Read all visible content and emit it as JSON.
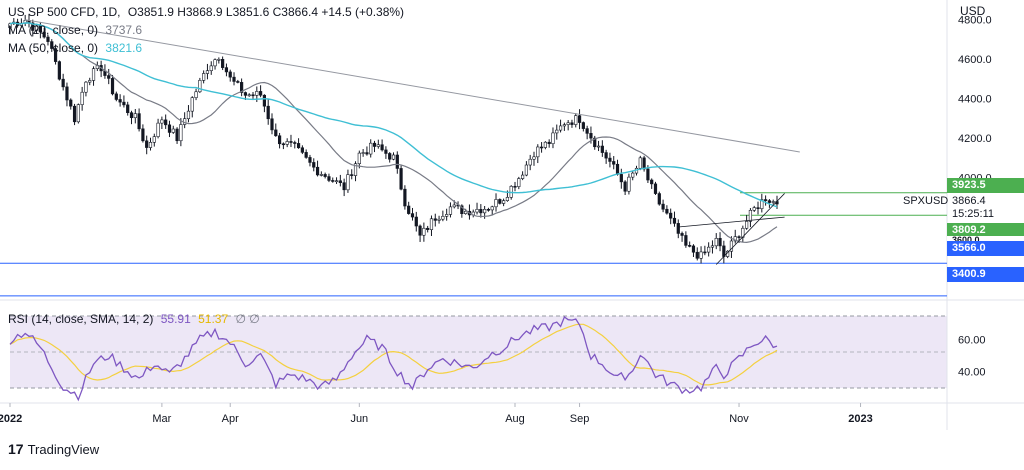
{
  "header": {
    "symbol": "US SP 500 CFD, 1D,",
    "ohlc": "O3851.9  H3868.9  L3851.6  C3866.4  +14.5 (+0.38%)",
    "ma20_label": "MA (20, close, 0)",
    "ma20_value": "3737.6",
    "ma50_label": "MA (50, close, 0)",
    "ma50_value": "3821.6",
    "rsi_label": "RSI (14, close, SMA, 14, 2)",
    "rsi_value": "55.91",
    "rsi_sma_value": "51.37",
    "rsi_extra": "∅  ∅"
  },
  "price_axis": {
    "currency": "USD",
    "ticks": [
      "4800.0",
      "4600.0",
      "4400.0",
      "4200.0",
      "4000.0"
    ]
  },
  "tags": {
    "upper": "3923.5",
    "last": "3866.4",
    "symbol": "SPXUSD",
    "countdown": "15:25:11",
    "lower": "3809.2",
    "hidden": "3600.0",
    "support1": "3566.0",
    "support2": "3400.9"
  },
  "rsi_axis": {
    "ticks": [
      "60.00",
      "40.00"
    ]
  },
  "time_axis": {
    "labels": [
      "2022",
      "Mar",
      "Apr",
      "Jun",
      "Aug",
      "Sep",
      "Nov",
      "2023"
    ]
  },
  "footer": {
    "brand": "TradingView",
    "logo": "17"
  },
  "colors": {
    "up": "#26a69a",
    "down": "#ef5350",
    "candle": "#131722",
    "ma20": "#787b86",
    "ma50": "#3fbfd4",
    "rsi": "#7e57c2",
    "rsi_sma": "#f4d03f",
    "support": "#2962ff",
    "channel": "#4caf50",
    "trend": "#9598a1"
  },
  "chart_data": {
    "type": "candlestick",
    "title": "US SP 500 CFD, 1D",
    "price_range": [
      3380,
      4900
    ],
    "rsi_range": [
      20,
      85
    ],
    "last_close": 3866.4,
    "ma20_last": 3737.6,
    "ma50_last": 3821.6,
    "rsi_last": 55.91,
    "rsi_sma_last": 51.37,
    "levels": [
      3923.5,
      3809.2,
      3566.0,
      3400.9
    ],
    "rsi_bands": [
      70,
      50,
      30
    ],
    "anchors": [
      {
        "t": 0,
        "p": 4780
      },
      {
        "t": 4,
        "p": 4800
      },
      {
        "t": 10,
        "p": 4700
      },
      {
        "t": 14,
        "p": 4460
      },
      {
        "t": 17,
        "p": 4300
      },
      {
        "t": 20,
        "p": 4500
      },
      {
        "t": 24,
        "p": 4560
      },
      {
        "t": 28,
        "p": 4400
      },
      {
        "t": 33,
        "p": 4300
      },
      {
        "t": 36,
        "p": 4150
      },
      {
        "t": 40,
        "p": 4300
      },
      {
        "t": 44,
        "p": 4200
      },
      {
        "t": 48,
        "p": 4400
      },
      {
        "t": 52,
        "p": 4560
      },
      {
        "t": 55,
        "p": 4620
      },
      {
        "t": 58,
        "p": 4500
      },
      {
        "t": 62,
        "p": 4420
      },
      {
        "t": 66,
        "p": 4420
      },
      {
        "t": 70,
        "p": 4200
      },
      {
        "t": 75,
        "p": 4150
      },
      {
        "t": 80,
        "p": 4050
      },
      {
        "t": 84,
        "p": 4000
      },
      {
        "t": 88,
        "p": 3950
      },
      {
        "t": 92,
        "p": 4120
      },
      {
        "t": 96,
        "p": 4160
      },
      {
        "t": 101,
        "p": 4100
      },
      {
        "t": 104,
        "p": 3880
      },
      {
        "t": 108,
        "p": 3700
      },
      {
        "t": 112,
        "p": 3800
      },
      {
        "t": 116,
        "p": 3850
      },
      {
        "t": 120,
        "p": 3830
      },
      {
        "t": 126,
        "p": 3850
      },
      {
        "t": 130,
        "p": 3900
      },
      {
        "t": 134,
        "p": 4000
      },
      {
        "t": 138,
        "p": 4130
      },
      {
        "t": 142,
        "p": 4180
      },
      {
        "t": 146,
        "p": 4280
      },
      {
        "t": 150,
        "p": 4300
      },
      {
        "t": 154,
        "p": 4180
      },
      {
        "t": 158,
        "p": 4080
      },
      {
        "t": 162,
        "p": 3950
      },
      {
        "t": 166,
        "p": 4080
      },
      {
        "t": 170,
        "p": 3900
      },
      {
        "t": 174,
        "p": 3780
      },
      {
        "t": 178,
        "p": 3650
      },
      {
        "t": 182,
        "p": 3600
      },
      {
        "t": 186,
        "p": 3680
      },
      {
        "t": 188,
        "p": 3600
      },
      {
        "t": 192,
        "p": 3720
      },
      {
        "t": 196,
        "p": 3840
      },
      {
        "t": 199,
        "p": 3900
      },
      {
        "t": 202,
        "p": 3866.4
      }
    ],
    "rsi_anchors": [
      {
        "t": 0,
        "v": 60
      },
      {
        "t": 4,
        "v": 65
      },
      {
        "t": 8,
        "v": 55
      },
      {
        "t": 14,
        "v": 30
      },
      {
        "t": 18,
        "v": 25
      },
      {
        "t": 22,
        "v": 45
      },
      {
        "t": 26,
        "v": 50
      },
      {
        "t": 30,
        "v": 42
      },
      {
        "t": 34,
        "v": 35
      },
      {
        "t": 38,
        "v": 45
      },
      {
        "t": 42,
        "v": 38
      },
      {
        "t": 46,
        "v": 48
      },
      {
        "t": 50,
        "v": 60
      },
      {
        "t": 54,
        "v": 65
      },
      {
        "t": 58,
        "v": 58
      },
      {
        "t": 62,
        "v": 45
      },
      {
        "t": 66,
        "v": 50
      },
      {
        "t": 70,
        "v": 32
      },
      {
        "t": 74,
        "v": 38
      },
      {
        "t": 78,
        "v": 35
      },
      {
        "t": 82,
        "v": 30
      },
      {
        "t": 86,
        "v": 35
      },
      {
        "t": 90,
        "v": 50
      },
      {
        "t": 94,
        "v": 60
      },
      {
        "t": 98,
        "v": 55
      },
      {
        "t": 102,
        "v": 40
      },
      {
        "t": 106,
        "v": 30
      },
      {
        "t": 110,
        "v": 42
      },
      {
        "t": 114,
        "v": 48
      },
      {
        "t": 118,
        "v": 45
      },
      {
        "t": 122,
        "v": 42
      },
      {
        "t": 126,
        "v": 50
      },
      {
        "t": 130,
        "v": 55
      },
      {
        "t": 134,
        "v": 62
      },
      {
        "t": 138,
        "v": 66
      },
      {
        "t": 142,
        "v": 68
      },
      {
        "t": 146,
        "v": 72
      },
      {
        "t": 150,
        "v": 70
      },
      {
        "t": 153,
        "v": 50
      },
      {
        "t": 156,
        "v": 45
      },
      {
        "t": 160,
        "v": 35
      },
      {
        "t": 164,
        "v": 40
      },
      {
        "t": 166,
        "v": 52
      },
      {
        "t": 170,
        "v": 38
      },
      {
        "t": 174,
        "v": 32
      },
      {
        "t": 178,
        "v": 28
      },
      {
        "t": 182,
        "v": 30
      },
      {
        "t": 186,
        "v": 42
      },
      {
        "t": 188,
        "v": 38
      },
      {
        "t": 192,
        "v": 48
      },
      {
        "t": 196,
        "v": 58
      },
      {
        "t": 199,
        "v": 60
      },
      {
        "t": 202,
        "v": 55.91
      }
    ],
    "trendline": [
      {
        "t": 4,
        "p": 4800
      },
      {
        "t": 208,
        "p": 4130
      }
    ],
    "channel_lower": [
      {
        "t": 186,
        "p": 3560
      },
      {
        "t": 204,
        "p": 3920
      }
    ],
    "channel_upper": [
      {
        "t": 176,
        "p": 3750
      },
      {
        "t": 204,
        "p": 3800
      }
    ]
  }
}
